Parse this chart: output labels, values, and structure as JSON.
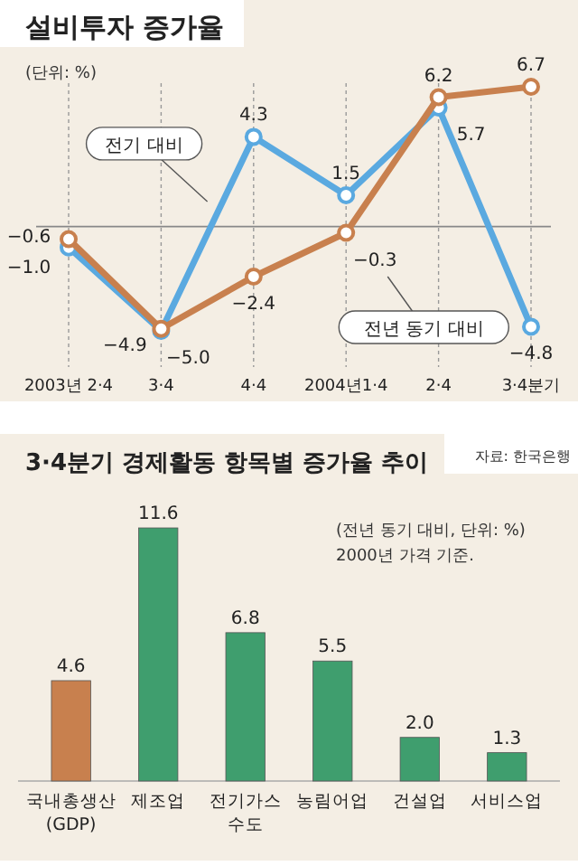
{
  "chart_data": [
    {
      "type": "line",
      "title": "설비투자 증가율",
      "subtitle": "(단위: %)",
      "categories": [
        "2003년 2·4",
        "3·4",
        "4·4",
        "2004년1·4",
        "2·4",
        "3·4분기"
      ],
      "series": [
        {
          "name": "전기 대비",
          "color": "#5aa9e0",
          "values": [
            -1.0,
            -5.0,
            4.3,
            1.5,
            5.7,
            -4.8
          ],
          "value_labels": [
            "−1.0",
            "−5.0",
            "4.3",
            "1.5",
            "5.7",
            "−4.8"
          ]
        },
        {
          "name": "전년 동기 대비",
          "color": "#c8804e",
          "values": [
            -0.6,
            -4.9,
            -2.4,
            -0.3,
            6.2,
            6.7
          ],
          "value_labels": [
            "−0.6",
            "−4.9",
            "−2.4",
            "−0.3",
            "6.2",
            "6.7"
          ]
        }
      ],
      "marker": "circle",
      "grid": "x",
      "legend": false,
      "ref_lines": [
        {
          "axis": "y",
          "value": 0,
          "color": "#888888"
        }
      ]
    },
    {
      "type": "bar",
      "title": "3·4분기 경제활동 항목별 증가율 추이",
      "subtitle": "(전년 동기 대비, 단위: %)\n2000년 가격 기준.",
      "annotations": [
        "자료: 한국은행"
      ],
      "categories": [
        "국내총생산\n(GDP)",
        "제조업",
        "전기가스\n수도",
        "농림어업",
        "건설업",
        "서비스업"
      ],
      "values": [
        4.6,
        11.6,
        6.8,
        5.5,
        2.0,
        1.3
      ],
      "value_labels": [
        "4.6",
        "11.6",
        "6.8",
        "5.5",
        "2.0",
        "1.3"
      ],
      "colors": [
        "#c8804e",
        "#3f9e6e",
        "#3f9e6e",
        "#3f9e6e",
        "#3f9e6e",
        "#3f9e6e"
      ]
    }
  ]
}
